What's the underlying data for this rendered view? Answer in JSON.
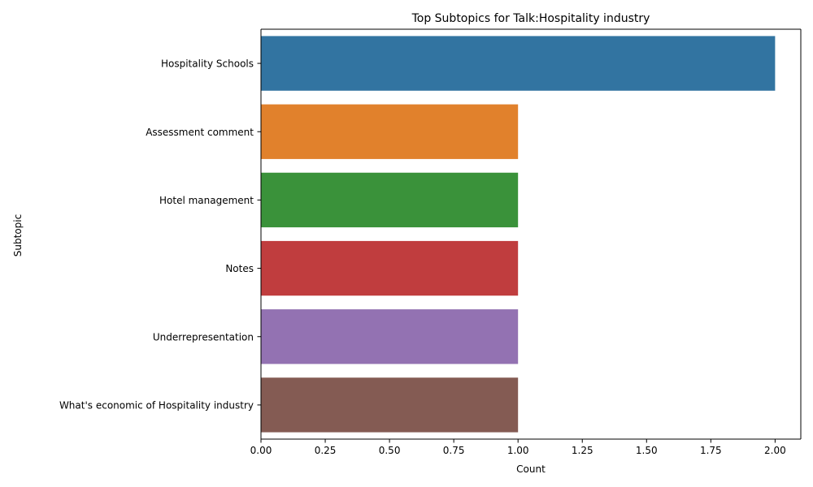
{
  "chart_data": {
    "type": "bar",
    "orientation": "horizontal",
    "title": "Top Subtopics for Talk:Hospitality industry",
    "xlabel": "Count",
    "ylabel": "Subtopic",
    "categories": [
      "Hospitality Schools",
      "Assessment comment",
      "Hotel management",
      "Notes",
      "Underrepresentation",
      "What's economic of Hospitality industry"
    ],
    "values": [
      2,
      1,
      1,
      1,
      1,
      1
    ],
    "colors": [
      "#3274a1",
      "#e1812c",
      "#3a923a",
      "#c03d3e",
      "#9372b2",
      "#845b53"
    ],
    "xlim": [
      0,
      2.1
    ],
    "xticks": [
      "0.00",
      "0.25",
      "0.50",
      "0.75",
      "1.00",
      "1.25",
      "1.50",
      "1.75",
      "2.00"
    ],
    "grid": false,
    "legend": "none"
  }
}
